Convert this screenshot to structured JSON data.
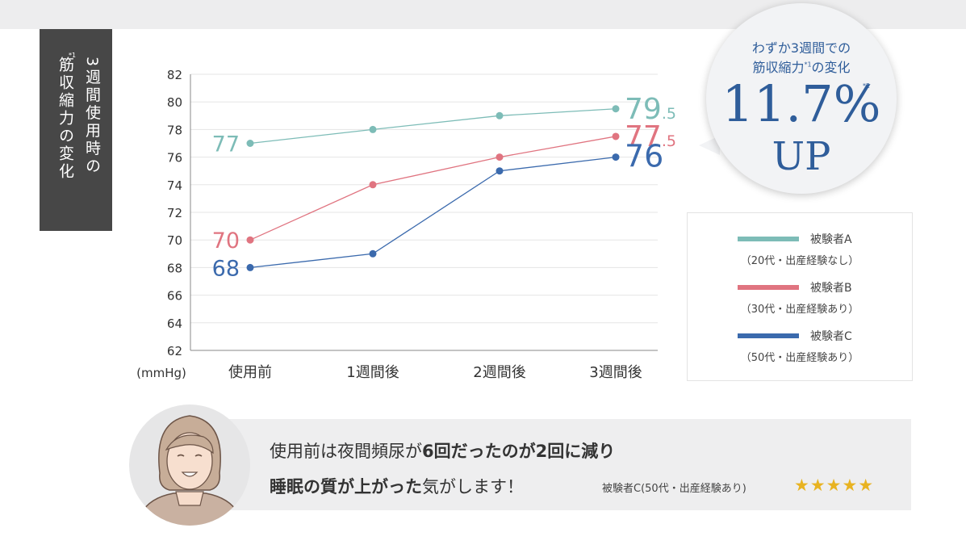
{
  "side_label": {
    "lines": [
      "3週間使用時の",
      "筋収縮力の変化"
    ],
    "note": "*1"
  },
  "chart_data": {
    "type": "line",
    "categories": [
      "使用前",
      "1週間後",
      "2週間後",
      "3週間後"
    ],
    "ylabel": "(mmHg)",
    "ylim": [
      62,
      82
    ],
    "yticks": [
      "62",
      "64",
      "66",
      "68",
      "70",
      "72",
      "74",
      "76",
      "78",
      "80",
      "82"
    ],
    "grid": true,
    "series": [
      {
        "name": "被験者A",
        "color": "#7dbcb7",
        "values": [
          77,
          78,
          79,
          79.5
        ],
        "start_label": "77",
        "end_label_int": "79",
        "end_label_dec": ".5"
      },
      {
        "name": "被験者B",
        "color": "#e07480",
        "values": [
          70,
          74,
          76,
          77.5
        ],
        "start_label": "70",
        "end_label_int": "77",
        "end_label_dec": ".5"
      },
      {
        "name": "被験者C",
        "color": "#3b6aad",
        "values": [
          68,
          69,
          75,
          76
        ],
        "start_label": "68",
        "end_label_int": "76",
        "end_label_dec": ""
      }
    ]
  },
  "bubble": {
    "line1": "わずか3週間での",
    "line2_a": "筋収縮力",
    "line2_note": "*1",
    "line2_b": "の変化",
    "big": "11.7%",
    "big_note": "*2",
    "up": "UP"
  },
  "legend": [
    {
      "name": "被験者A",
      "sub": "（20代・出産経験なし）",
      "color": "#7dbcb7"
    },
    {
      "name": "被験者B",
      "sub": "（30代・出産経験あり）",
      "color": "#e07480"
    },
    {
      "name": "被験者C",
      "sub": "（50代・出産経験あり）",
      "color": "#3b6aad"
    }
  ],
  "quote": {
    "l1_a": "使用前は夜間頻尿が",
    "l1_b": "6回だったのが2回に減り",
    "l2_a": "睡眠の質が上がった",
    "l2_b": "気がします！",
    "by": "被験者C(50代・出産経験あり)",
    "stars": "★★★★★",
    "star_color": "#e8b321"
  }
}
